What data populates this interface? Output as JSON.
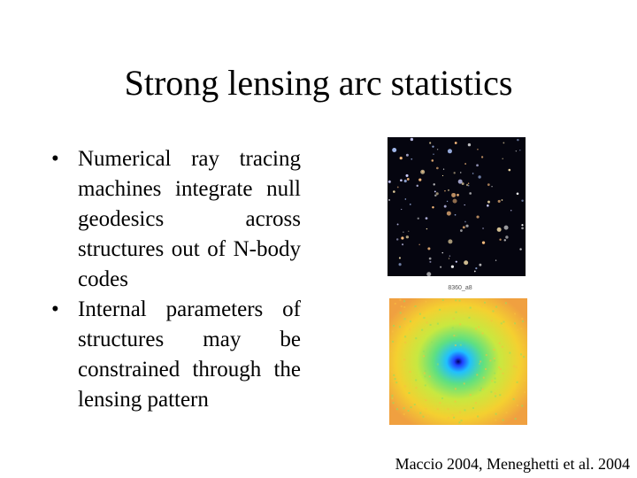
{
  "title": "Strong lensing arc statistics",
  "bullets": [
    "Numerical ray tracing machines integrate null geodesics across structures out of N-body codes",
    "Internal parameters of structures may be constrained through the lensing pattern"
  ],
  "image_caption": "8360_a8",
  "citation": "Maccio 2004, Meneghetti et al. 2004"
}
